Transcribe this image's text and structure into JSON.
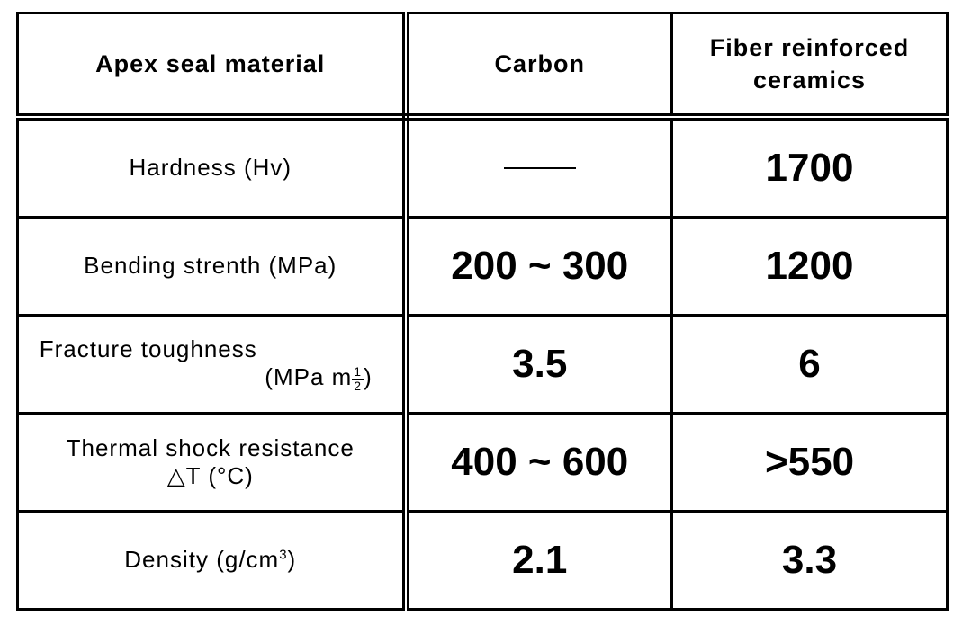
{
  "table": {
    "header": {
      "col1": "Apex seal material",
      "col2": "Carbon",
      "col3_line1": "Fiber reinforced",
      "col3_line2": "ceramics"
    },
    "rows": [
      {
        "label": "Hardness (Hv)",
        "carbon": "—",
        "ceramics": "1700"
      },
      {
        "label": "Bending strenth (MPa)",
        "carbon": "200 ~ 300",
        "ceramics": "1200"
      },
      {
        "label_line1": "Fracture toughness",
        "label_unit_prefix": "(MPa m",
        "label_unit_num": "1",
        "label_unit_den": "2",
        "label_unit_suffix": ")",
        "carbon": "3.5",
        "ceramics": "6"
      },
      {
        "label_line1": "Thermal shock resistance",
        "label_line2": "△T (°C)",
        "carbon": "400 ~ 600",
        "ceramics": ">550"
      },
      {
        "label_prefix": "Density (g/cm",
        "label_sup": "3",
        "label_suffix": ")",
        "carbon": "2.1",
        "ceramics": "3.3"
      }
    ]
  }
}
